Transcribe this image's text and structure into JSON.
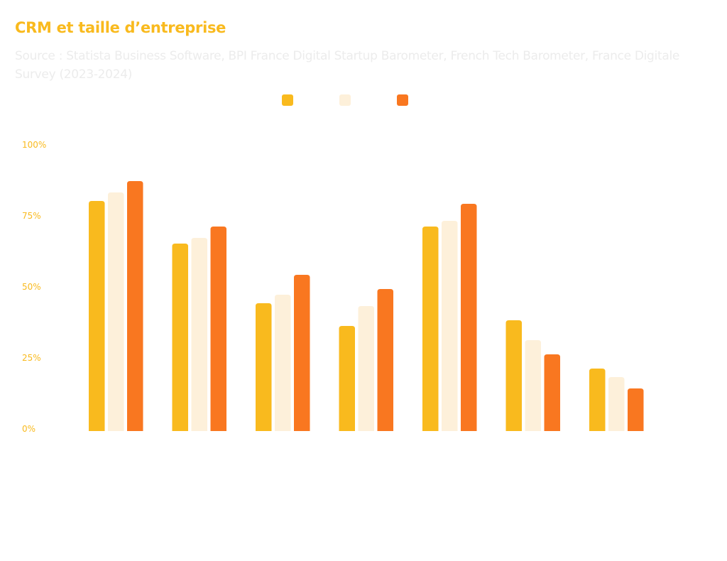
{
  "header": {
    "title": "CRM et taille d’entreprise",
    "subtitle": "Source : Statista Business Software, BPI France Digital Startup Barometer, French Tech Barometer, France Digitale Survey  (2023-2024)"
  },
  "colors": {
    "accent": "#F9BA1E",
    "subtitle": "#ECECEC"
  },
  "chart_data": {
    "type": "bar",
    "title": "CRM et taille d’entreprise",
    "subtitle": "Source : Statista Business Software, BPI France Digital Startup Barometer, French Tech Barometer, France Digitale Survey  (2023-2024)",
    "xlabel": "",
    "ylabel": "",
    "ylim": [
      0,
      100
    ],
    "yticks": [
      0,
      25,
      50,
      75,
      100
    ],
    "ytick_labels": [
      "0%",
      "25%",
      "50%",
      "75%",
      "100%"
    ],
    "grid": false,
    "legend_position": "top-center",
    "categories": [
      "",
      "",
      "",
      "",
      "",
      "",
      ""
    ],
    "series": [
      {
        "name": "",
        "color": "#F9BA1E",
        "values": [
          81,
          66,
          45,
          37,
          72,
          39,
          22
        ]
      },
      {
        "name": "",
        "color": "#FDF0DA",
        "values": [
          84,
          68,
          48,
          44,
          74,
          32,
          19
        ]
      },
      {
        "name": "",
        "color": "#F97720",
        "values": [
          88,
          72,
          55,
          50,
          80,
          27,
          15
        ]
      }
    ]
  }
}
